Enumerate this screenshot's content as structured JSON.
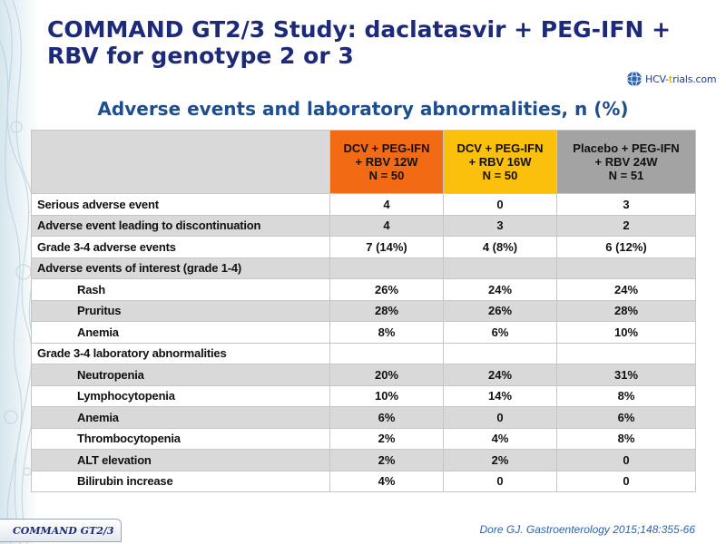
{
  "header": {
    "title": "COMMAND GT2/3 Study: daclatasvir + PEG-IFN + RBV for genotype 2 or 3",
    "logo_prefix": "HCV-",
    "logo_mid": "t",
    "logo_suffix": "rials.com"
  },
  "subtitle": "Adverse events and laboratory abnormalities, n (%)",
  "table": {
    "columns": [
      {
        "line1": "DCV + PEG-IFN",
        "line2": "+ RBV 12W",
        "line3": "N = 50",
        "color": "#f26a14"
      },
      {
        "line1": "DCV + PEG-IFN",
        "line2": "+ RBV 16W",
        "line3": "N = 50",
        "color": "#fbc00b"
      },
      {
        "line1": "Placebo + PEG-IFN",
        "line2": "+ RBV 24W",
        "line3": "N = 51",
        "color": "#a3a3a3"
      }
    ],
    "rows": [
      {
        "label": "Serious adverse event",
        "values": [
          "4",
          "0",
          "3"
        ]
      },
      {
        "label": "Adverse event leading to discontinuation",
        "values": [
          "4",
          "3",
          "2"
        ]
      },
      {
        "label": "Grade 3-4 adverse events",
        "values": [
          "7 (14%)",
          "4 (8%)",
          "6 (12%)"
        ]
      },
      {
        "label": "Adverse events of interest (grade 1-4)",
        "values": [
          "",
          "",
          ""
        ]
      },
      {
        "label": "Rash",
        "values": [
          "26%",
          "24%",
          "24%"
        ]
      },
      {
        "label": "Pruritus",
        "values": [
          "28%",
          "26%",
          "28%"
        ]
      },
      {
        "label": "Anemia",
        "values": [
          "8%",
          "6%",
          "10%"
        ]
      },
      {
        "label": "Grade 3-4 laboratory abnormalities",
        "values": [
          "",
          "",
          ""
        ]
      },
      {
        "label": "Neutropenia",
        "values": [
          "20%",
          "24%",
          "31%"
        ]
      },
      {
        "label": "Lymphocytopenia",
        "values": [
          "10%",
          "14%",
          "8%"
        ]
      },
      {
        "label": "Anemia",
        "values": [
          "6%",
          "0",
          "6%"
        ]
      },
      {
        "label": "Thrombocytopenia",
        "values": [
          "2%",
          "4%",
          "8%"
        ]
      },
      {
        "label": "ALT elevation",
        "values": [
          "2%",
          "2%",
          "0"
        ]
      },
      {
        "label": "Bilirubin increase",
        "values": [
          "4%",
          "0",
          "0"
        ]
      }
    ]
  },
  "footer": {
    "tab_label": "COMMAND GT2/3",
    "citation": "Dore GJ. Gastroenterology 2015;148:355-66"
  }
}
